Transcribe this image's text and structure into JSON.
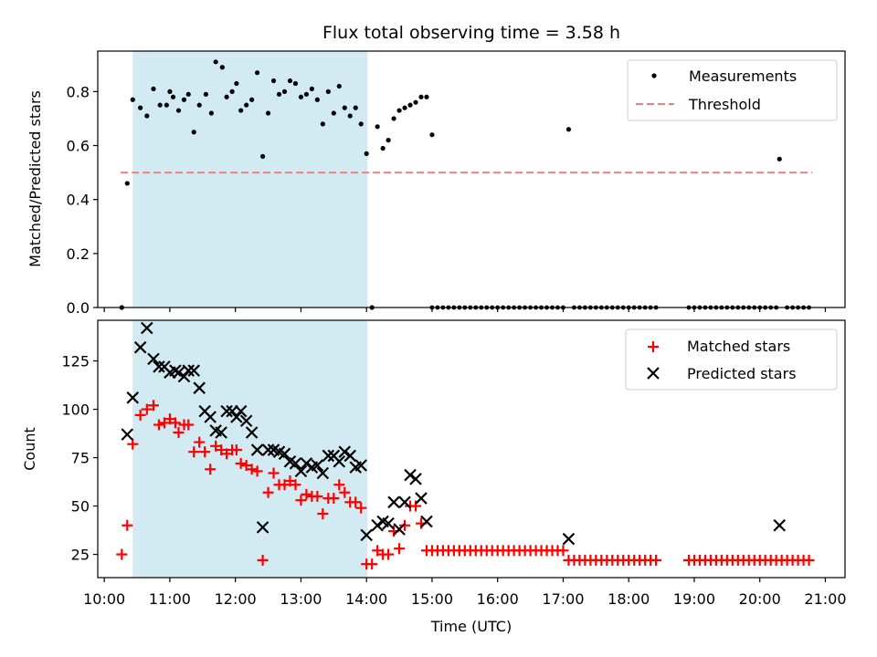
{
  "title": "Flux total observing time = 3.58 h",
  "colors": {
    "measurement": "#000000",
    "threshold": "#f08080",
    "matched": "#ff0000",
    "predicted": "#000000",
    "shade": "#add8e6"
  },
  "chart_data": [
    {
      "type": "scatter",
      "ylabel": "Matched/Predicted stars",
      "xlim_hours": [
        9.9,
        21.3
      ],
      "ylim": [
        0,
        0.95
      ],
      "yticks": [
        0.0,
        0.2,
        0.4,
        0.6,
        0.8
      ],
      "ytick_labels": [
        "0.0",
        "0.2",
        "0.4",
        "0.6",
        "0.8"
      ],
      "shaded_span": [
        "10:26",
        "14:01"
      ],
      "threshold": {
        "value": 0.5,
        "x_range": [
          "10:15",
          "20:48"
        ]
      },
      "legend": {
        "position": "upper right",
        "entries": [
          "Measurements",
          "Threshold"
        ]
      },
      "series": [
        {
          "name": "Measurements",
          "marker": "dot",
          "points": [
            [
              "10:16",
              0.0
            ],
            [
              "10:21",
              0.46
            ],
            [
              "10:26",
              0.77
            ],
            [
              "10:33",
              0.74
            ],
            [
              "10:39",
              0.71
            ],
            [
              "10:45",
              0.81
            ],
            [
              "10:51",
              0.75
            ],
            [
              "10:57",
              0.75
            ],
            [
              "11:00",
              0.8
            ],
            [
              "11:03",
              0.78
            ],
            [
              "11:08",
              0.73
            ],
            [
              "11:13",
              0.77
            ],
            [
              "11:17",
              0.79
            ],
            [
              "11:22",
              0.65
            ],
            [
              "11:27",
              0.75
            ],
            [
              "11:33",
              0.79
            ],
            [
              "11:38",
              0.72
            ],
            [
              "11:42",
              0.91
            ],
            [
              "11:48",
              0.89
            ],
            [
              "11:52",
              0.78
            ],
            [
              "11:57",
              0.8
            ],
            [
              "12:01",
              0.83
            ],
            [
              "12:05",
              0.73
            ],
            [
              "12:10",
              0.75
            ],
            [
              "12:15",
              0.77
            ],
            [
              "12:20",
              0.87
            ],
            [
              "12:25",
              0.56
            ],
            [
              "12:30",
              0.72
            ],
            [
              "12:35",
              0.84
            ],
            [
              "12:40",
              0.79
            ],
            [
              "12:45",
              0.8
            ],
            [
              "12:50",
              0.84
            ],
            [
              "12:55",
              0.83
            ],
            [
              "13:00",
              0.78
            ],
            [
              "13:05",
              0.79
            ],
            [
              "13:10",
              0.81
            ],
            [
              "13:15",
              0.77
            ],
            [
              "13:20",
              0.68
            ],
            [
              "13:25",
              0.8
            ],
            [
              "13:30",
              0.72
            ],
            [
              "13:35",
              0.82
            ],
            [
              "13:40",
              0.74
            ],
            [
              "13:45",
              0.71
            ],
            [
              "13:50",
              0.74
            ],
            [
              "13:55",
              0.68
            ],
            [
              "14:00",
              0.57
            ],
            [
              "14:05",
              0.0
            ],
            [
              "14:10",
              0.67
            ],
            [
              "14:15",
              0.59
            ],
            [
              "14:20",
              0.62
            ],
            [
              "14:25",
              0.7
            ],
            [
              "14:30",
              0.73
            ],
            [
              "14:35",
              0.74
            ],
            [
              "14:40",
              0.75
            ],
            [
              "14:45",
              0.76
            ],
            [
              "14:50",
              0.78
            ],
            [
              "14:55",
              0.78
            ],
            [
              "15:00",
              0.64
            ],
            [
              "17:05",
              0.66
            ],
            [
              "20:18",
              0.55
            ]
          ],
          "zero_runs": [
            [
              "15:00",
              "17:00"
            ],
            [
              "17:10",
              "18:25"
            ],
            [
              "18:55",
              "20:15"
            ],
            [
              "20:25",
              "20:45"
            ]
          ]
        }
      ]
    },
    {
      "type": "scatter",
      "ylabel": "Count",
      "xlabel": "Time (UTC)",
      "xlim_hours": [
        9.9,
        21.3
      ],
      "ylim": [
        13,
        146
      ],
      "yticks": [
        25,
        50,
        75,
        100,
        125
      ],
      "ytick_labels": [
        "25",
        "50",
        "75",
        "100",
        "125"
      ],
      "xticks": [
        "10:00",
        "11:00",
        "12:00",
        "13:00",
        "14:00",
        "15:00",
        "16:00",
        "17:00",
        "18:00",
        "19:00",
        "20:00",
        "21:00"
      ],
      "shaded_span": [
        "10:26",
        "14:01"
      ],
      "legend": {
        "position": "upper right",
        "entries": [
          "Matched stars",
          "Predicted stars"
        ]
      },
      "series": [
        {
          "name": "Matched stars",
          "marker": "plus",
          "points": [
            [
              "10:16",
              25
            ],
            [
              "10:21",
              40
            ],
            [
              "10:26",
              82
            ],
            [
              "10:33",
              97
            ],
            [
              "10:39",
              100
            ],
            [
              "10:45",
              102
            ],
            [
              "10:50",
              92
            ],
            [
              "10:55",
              93
            ],
            [
              "11:00",
              95
            ],
            [
              "11:05",
              93
            ],
            [
              "11:08",
              88
            ],
            [
              "11:13",
              92
            ],
            [
              "11:17",
              92
            ],
            [
              "11:22",
              78
            ],
            [
              "11:27",
              83
            ],
            [
              "11:32",
              78
            ],
            [
              "11:37",
              69
            ],
            [
              "11:42",
              81
            ],
            [
              "11:47",
              79
            ],
            [
              "11:52",
              77
            ],
            [
              "11:57",
              79
            ],
            [
              "12:01",
              79
            ],
            [
              "12:05",
              72
            ],
            [
              "12:10",
              71
            ],
            [
              "12:15",
              69
            ],
            [
              "12:20",
              68
            ],
            [
              "12:25",
              22
            ],
            [
              "12:30",
              57
            ],
            [
              "12:35",
              67
            ],
            [
              "12:40",
              61
            ],
            [
              "12:45",
              61
            ],
            [
              "12:50",
              63
            ],
            [
              "12:55",
              61
            ],
            [
              "13:00",
              53
            ],
            [
              "13:05",
              56
            ],
            [
              "13:10",
              55
            ],
            [
              "13:15",
              55
            ],
            [
              "13:20",
              46
            ],
            [
              "13:25",
              54
            ],
            [
              "13:30",
              54
            ],
            [
              "13:35",
              61
            ],
            [
              "13:40",
              57
            ],
            [
              "13:45",
              52
            ],
            [
              "13:50",
              52
            ],
            [
              "13:55",
              49
            ],
            [
              "14:00",
              20
            ],
            [
              "14:05",
              20
            ],
            [
              "14:10",
              27
            ],
            [
              "14:15",
              25
            ],
            [
              "14:20",
              25
            ],
            [
              "14:25",
              37
            ],
            [
              "14:30",
              28
            ],
            [
              "14:35",
              40
            ],
            [
              "14:40",
              50
            ],
            [
              "14:45",
              50
            ],
            [
              "14:50",
              41
            ],
            [
              "14:55",
              27
            ],
            [
              "17:05",
              22
            ]
          ],
          "flat_runs": [
            [
              "15:00",
              "17:00",
              27
            ],
            [
              "17:10",
              "18:25",
              22
            ],
            [
              "18:55",
              "20:48",
              22
            ]
          ]
        },
        {
          "name": "Predicted stars",
          "marker": "x",
          "points": [
            [
              "10:21",
              87
            ],
            [
              "10:26",
              106
            ],
            [
              "10:33",
              132
            ],
            [
              "10:39",
              142
            ],
            [
              "10:45",
              126
            ],
            [
              "10:50",
              122
            ],
            [
              "10:55",
              122
            ],
            [
              "11:00",
              119
            ],
            [
              "11:05",
              120
            ],
            [
              "11:08",
              119
            ],
            [
              "11:13",
              117
            ],
            [
              "11:17",
              120
            ],
            [
              "11:22",
              120
            ],
            [
              "11:27",
              111
            ],
            [
              "11:32",
              99
            ],
            [
              "11:37",
              96
            ],
            [
              "11:42",
              89
            ],
            [
              "11:47",
              88
            ],
            [
              "11:52",
              99
            ],
            [
              "11:57",
              99
            ],
            [
              "12:01",
              96
            ],
            [
              "12:05",
              99
            ],
            [
              "12:10",
              94
            ],
            [
              "12:15",
              88
            ],
            [
              "12:20",
              79
            ],
            [
              "12:25",
              39
            ],
            [
              "12:30",
              79
            ],
            [
              "12:35",
              79
            ],
            [
              "12:40",
              78
            ],
            [
              "12:45",
              77
            ],
            [
              "12:50",
              73
            ],
            [
              "12:55",
              72
            ],
            [
              "13:00",
              68
            ],
            [
              "13:05",
              72
            ],
            [
              "13:10",
              70
            ],
            [
              "13:15",
              71
            ],
            [
              "13:20",
              67
            ],
            [
              "13:25",
              76
            ],
            [
              "13:30",
              76
            ],
            [
              "13:35",
              73
            ],
            [
              "13:40",
              78
            ],
            [
              "13:45",
              76
            ],
            [
              "13:50",
              70
            ],
            [
              "13:55",
              71
            ],
            [
              "14:00",
              35
            ],
            [
              "14:10",
              40
            ],
            [
              "14:15",
              42
            ],
            [
              "14:20",
              41
            ],
            [
              "14:25",
              52
            ],
            [
              "14:30",
              38
            ],
            [
              "14:35",
              52
            ],
            [
              "14:40",
              66
            ],
            [
              "14:45",
              64
            ],
            [
              "14:50",
              54
            ],
            [
              "14:55",
              42
            ],
            [
              "17:05",
              33
            ],
            [
              "20:18",
              40
            ]
          ]
        }
      ]
    }
  ]
}
